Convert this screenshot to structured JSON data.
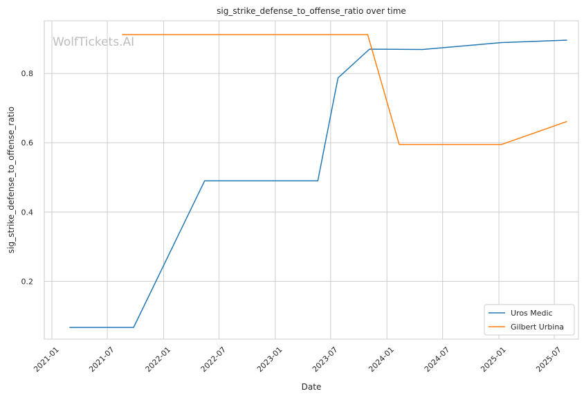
{
  "chart_data": {
    "type": "line",
    "title": "sig_strike_defense_to_offense_ratio over time",
    "xlabel": "Date",
    "ylabel": "sig_strike_defense_to_offense_ratio",
    "watermark": "WolfTickets.AI",
    "x_ticks": [
      "2021-01",
      "2021-07",
      "2022-01",
      "2022-07",
      "2023-01",
      "2023-07",
      "2024-01",
      "2024-07",
      "2025-01",
      "2025-07"
    ],
    "y_ticks": [
      0.2,
      0.4,
      0.6,
      0.8
    ],
    "xlim": [
      "2020-12-07",
      "2025-09-18"
    ],
    "ylim": [
      0.033,
      0.952
    ],
    "grid": true,
    "legend_position": "lower-right",
    "series": [
      {
        "name": "Uros Medic",
        "color": "#1f77b4",
        "points": [
          {
            "x": "2021-03-01",
            "y": 0.067
          },
          {
            "x": "2021-09-25",
            "y": 0.067
          },
          {
            "x": "2022-05-15",
            "y": 0.49
          },
          {
            "x": "2023-05-20",
            "y": 0.49
          },
          {
            "x": "2023-07-25",
            "y": 0.787
          },
          {
            "x": "2023-11-05",
            "y": 0.87
          },
          {
            "x": "2024-04-27",
            "y": 0.869
          },
          {
            "x": "2025-01-10",
            "y": 0.889
          },
          {
            "x": "2025-08-10",
            "y": 0.896
          }
        ]
      },
      {
        "name": "Gilbert Urbina",
        "color": "#ff7f0e",
        "points": [
          {
            "x": "2021-08-20",
            "y": 0.912
          },
          {
            "x": "2023-10-30",
            "y": 0.912
          },
          {
            "x": "2024-02-10",
            "y": 0.595
          },
          {
            "x": "2025-01-10",
            "y": 0.595
          },
          {
            "x": "2025-08-10",
            "y": 0.661
          }
        ]
      }
    ]
  }
}
